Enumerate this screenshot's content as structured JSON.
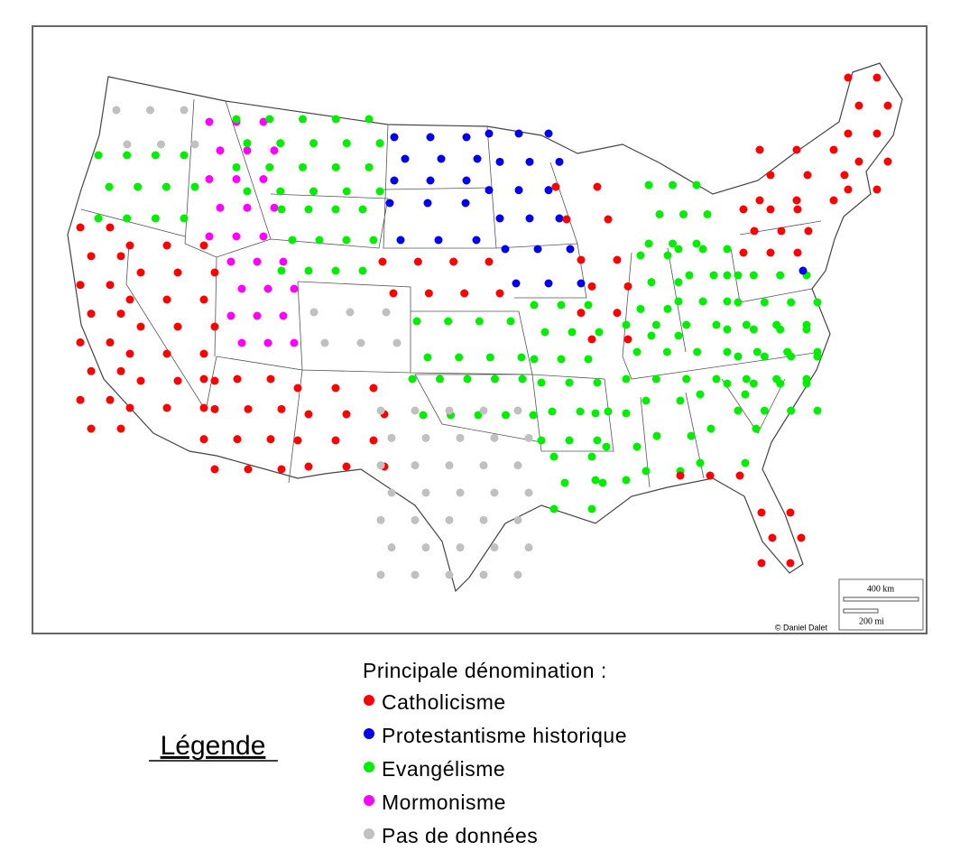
{
  "map": {
    "credit": "© Daniel Dalet",
    "scale_km": "400 km",
    "scale_mi": "200 mi"
  },
  "legend": {
    "title": "Légende",
    "heading": "Principale dénomination :",
    "items": [
      {
        "label": "Catholicisme",
        "color": "#ff0000"
      },
      {
        "label": "Protestantisme historique",
        "color": "#0000ee"
      },
      {
        "label": "Evangélisme",
        "color": "#00ee00"
      },
      {
        "label": "Mormonisme",
        "color": "#ff00ff"
      },
      {
        "label": "Pas de données",
        "color": "#c0c0c0"
      }
    ]
  }
}
